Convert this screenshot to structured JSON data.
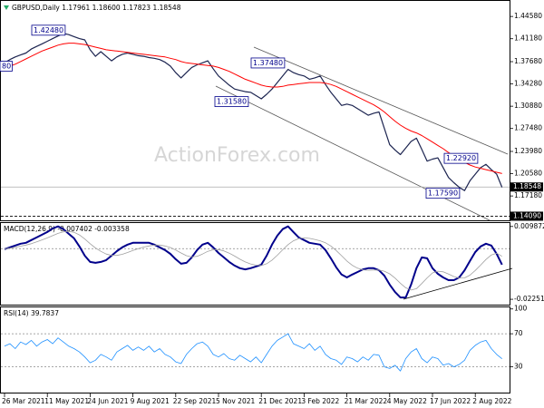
{
  "watermark": "ActionForex.com",
  "chart_data": [
    {
      "type": "line",
      "title": "GBPUSD,Daily 1.17961 1.18600 1.17823 1.18548",
      "ylim": [
        1.136,
        1.464
      ],
      "yticks": [
        {
          "value": 1.4458,
          "label": "1.44580"
        },
        {
          "value": 1.4118,
          "label": "1.41180"
        },
        {
          "value": 1.3768,
          "label": "1.37680"
        },
        {
          "value": 1.3428,
          "label": "1.34280"
        },
        {
          "value": 1.3088,
          "label": "1.30880"
        },
        {
          "value": 1.2748,
          "label": "1.27480"
        },
        {
          "value": 1.2398,
          "label": "1.23980"
        },
        {
          "value": 1.2058,
          "label": "1.20580"
        },
        {
          "value": 1.1718,
          "label": "1.17180"
        }
      ],
      "series": [
        {
          "color": "#1c2450",
          "line_width": 1.2,
          "values": [
            1.375,
            1.38,
            1.384,
            1.387,
            1.39,
            1.396,
            1.4,
            1.404,
            1.408,
            1.412,
            1.416,
            1.42,
            1.418,
            1.415,
            1.412,
            1.41,
            1.395,
            1.385,
            1.392,
            1.385,
            1.378,
            1.384,
            1.388,
            1.39,
            1.388,
            1.386,
            1.385,
            1.383,
            1.382,
            1.38,
            1.376,
            1.37,
            1.36,
            1.352,
            1.36,
            1.368,
            1.372,
            1.375,
            1.378,
            1.366,
            1.355,
            1.348,
            1.341,
            1.335,
            1.333,
            1.331,
            1.33,
            1.325,
            1.32,
            1.327,
            1.335,
            1.345,
            1.355,
            1.365,
            1.36,
            1.357,
            1.355,
            1.35,
            1.352,
            1.355,
            1.342,
            1.33,
            1.32,
            1.31,
            1.312,
            1.31,
            1.305,
            1.3,
            1.295,
            1.298,
            1.3,
            1.275,
            1.25,
            1.242,
            1.235,
            1.245,
            1.255,
            1.26,
            1.243,
            1.225,
            1.228,
            1.23,
            1.215,
            1.2,
            1.192,
            1.185,
            1.18,
            1.195,
            1.205,
            1.215,
            1.22,
            1.212,
            1.205,
            1.185
          ]
        },
        {
          "color": "#ff0000",
          "line_width": 1,
          "values": [
            1.367,
            1.37,
            1.373,
            1.377,
            1.381,
            1.385,
            1.389,
            1.393,
            1.396,
            1.399,
            1.402,
            1.404,
            1.405,
            1.405,
            1.404,
            1.403,
            1.401,
            1.399,
            1.397,
            1.395,
            1.394,
            1.393,
            1.392,
            1.391,
            1.39,
            1.389,
            1.388,
            1.387,
            1.386,
            1.385,
            1.384,
            1.382,
            1.38,
            1.377,
            1.375,
            1.374,
            1.373,
            1.372,
            1.371,
            1.37,
            1.368,
            1.365,
            1.362,
            1.358,
            1.354,
            1.35,
            1.347,
            1.344,
            1.341,
            1.339,
            1.338,
            1.338,
            1.339,
            1.341,
            1.342,
            1.343,
            1.344,
            1.345,
            1.345,
            1.345,
            1.344,
            1.342,
            1.339,
            1.335,
            1.331,
            1.327,
            1.323,
            1.319,
            1.315,
            1.311,
            1.306,
            1.3,
            1.293,
            1.286,
            1.28,
            1.275,
            1.271,
            1.268,
            1.264,
            1.259,
            1.254,
            1.249,
            1.244,
            1.238,
            1.233,
            1.228,
            1.223,
            1.219,
            1.216,
            1.214,
            1.212,
            1.21,
            1.208,
            1.206
          ]
        }
      ],
      "annotations": [
        {
          "value": 1.4248,
          "label": "1.42480"
        },
        {
          "value": 1.3748,
          "label": "1.37480"
        },
        {
          "value": 1.3158,
          "label": "1.31580"
        },
        {
          "value": 1.2292,
          "label": "1.22920"
        },
        {
          "value": 1.1759,
          "label": "1.17590"
        },
        {
          "label": "80"
        }
      ],
      "price_lines": [
        {
          "value": 1.18548,
          "label": "1.18548",
          "style": "solid"
        },
        {
          "value": 1.1409,
          "label": "1.14090",
          "style": "dashed"
        }
      ]
    },
    {
      "type": "line",
      "title": "MACD(12,26,9) -0.007402 -0.003358",
      "ylim": [
        -0.0245,
        0.011
      ],
      "yticks": [
        0.009872,
        -0.022516
      ],
      "zero_line": true,
      "series": [
        {
          "color": "#00008b",
          "line_width": 2,
          "values": [
            -0.0002,
            0.0006,
            0.0014,
            0.0022,
            0.0026,
            0.0038,
            0.005,
            0.0062,
            0.0074,
            0.009,
            0.0099,
            0.0087,
            0.0066,
            0.0046,
            0.001,
            -0.0031,
            -0.0059,
            -0.0063,
            -0.0059,
            -0.0051,
            -0.0031,
            -0.0011,
            0.0006,
            0.0018,
            0.0026,
            0.0026,
            0.0026,
            0.0026,
            0.0018,
            0.0006,
            -0.0006,
            -0.0023,
            -0.0047,
            -0.0067,
            -0.0063,
            -0.0039,
            -0.0006,
            0.0018,
            0.0026,
            0.0006,
            -0.0019,
            -0.0039,
            -0.0059,
            -0.0075,
            -0.0087,
            -0.0092,
            -0.0087,
            -0.0079,
            -0.0071,
            -0.0031,
            0.0018,
            0.0058,
            0.0087,
            0.0099,
            0.0074,
            0.005,
            0.0038,
            0.0026,
            0.0022,
            0.0018,
            -0.0006,
            -0.0043,
            -0.0083,
            -0.0115,
            -0.0128,
            -0.0115,
            -0.0104,
            -0.0092,
            -0.0087,
            -0.0087,
            -0.0096,
            -0.012,
            -0.016,
            -0.0193,
            -0.0217,
            -0.0217,
            -0.016,
            -0.0087,
            -0.0039,
            -0.0043,
            -0.0087,
            -0.0112,
            -0.0128,
            -0.014,
            -0.014,
            -0.0128,
            -0.0096,
            -0.0055,
            -0.0015,
            0.001,
            0.0022,
            0.0014,
            -0.0023,
            -0.0071
          ]
        },
        {
          "color": "#a0a0a0",
          "line_width": 0.8,
          "values": [
            0.0,
            0.0002,
            0.0006,
            0.0011,
            0.0016,
            0.0022,
            0.003,
            0.0039,
            0.0048,
            0.0058,
            0.0068,
            0.0075,
            0.0077,
            0.0073,
            0.0061,
            0.0043,
            0.0022,
            0.0003,
            -0.0012,
            -0.0024,
            -0.003,
            -0.003,
            -0.0025,
            -0.0017,
            -0.0008,
            0.0,
            0.0007,
            0.0012,
            0.0016,
            0.0016,
            0.0012,
            0.0005,
            -0.0006,
            -0.0019,
            -0.0031,
            -0.0037,
            -0.0034,
            -0.0024,
            -0.0012,
            -0.0005,
            -0.0004,
            -0.001,
            -0.002,
            -0.0033,
            -0.0047,
            -0.0059,
            -0.0068,
            -0.0073,
            -0.0075,
            -0.0067,
            -0.0051,
            -0.0029,
            -0.0005,
            0.0018,
            0.0035,
            0.0045,
            0.0048,
            0.0046,
            0.0041,
            0.0035,
            0.0026,
            0.0012,
            -0.0008,
            -0.0031,
            -0.0055,
            -0.0074,
            -0.0087,
            -0.0094,
            -0.0096,
            -0.0095,
            -0.0095,
            -0.01,
            -0.0112,
            -0.0131,
            -0.0154,
            -0.0174,
            -0.0184,
            -0.0178,
            -0.0155,
            -0.013,
            -0.0108,
            -0.01,
            -0.0103,
            -0.0113,
            -0.0124,
            -0.0131,
            -0.013,
            -0.0118,
            -0.0097,
            -0.0073,
            -0.0048,
            -0.0028,
            -0.002,
            -0.0034
          ]
        }
      ]
    },
    {
      "type": "line",
      "title": "RSI(14) 39.7837",
      "ylim": [
        0,
        103
      ],
      "yticks": [
        100,
        70,
        30
      ],
      "levels": [
        70,
        30
      ],
      "categories": [
        "26 Mar 2021",
        null,
        null,
        null,
        null,
        null,
        null,
        null,
        "11 May 2021",
        null,
        null,
        null,
        null,
        null,
        null,
        null,
        "24 Jun 2021",
        null,
        null,
        null,
        null,
        null,
        null,
        null,
        "9 Aug 2021",
        null,
        null,
        null,
        null,
        null,
        null,
        null,
        "22 Sep 2021",
        null,
        null,
        null,
        null,
        null,
        null,
        null,
        "5 Nov 2021",
        null,
        null,
        null,
        null,
        null,
        null,
        null,
        "21 Dec 2021",
        null,
        null,
        null,
        null,
        null,
        null,
        null,
        "3 Feb 2022",
        null,
        null,
        null,
        null,
        null,
        null,
        null,
        "21 Mar 2022",
        null,
        null,
        null,
        null,
        null,
        null,
        null,
        "4 May 2022",
        null,
        null,
        null,
        null,
        null,
        null,
        null,
        "17 Jun 2022",
        null,
        null,
        null,
        null,
        null,
        null,
        null,
        "2 Aug 2022",
        null,
        null,
        null,
        null,
        null
      ],
      "series": [
        {
          "color": "#1e90ff",
          "line_width": 0.8,
          "values": [
            55,
            58,
            52,
            60,
            57,
            62,
            55,
            60,
            63,
            58,
            65,
            60,
            55,
            52,
            48,
            42,
            35,
            38,
            45,
            42,
            38,
            48,
            52,
            56,
            50,
            54,
            50,
            55,
            48,
            52,
            45,
            42,
            36,
            34,
            45,
            52,
            58,
            60,
            55,
            45,
            42,
            46,
            40,
            38,
            44,
            40,
            36,
            42,
            35,
            45,
            55,
            62,
            66,
            70,
            58,
            55,
            52,
            58,
            50,
            55,
            45,
            40,
            38,
            33,
            42,
            40,
            36,
            42,
            38,
            45,
            44,
            30,
            28,
            32,
            25,
            40,
            48,
            52,
            40,
            35,
            42,
            40,
            32,
            34,
            30,
            33,
            38,
            50,
            56,
            60,
            62,
            52,
            45,
            39.7837
          ]
        }
      ]
    }
  ]
}
